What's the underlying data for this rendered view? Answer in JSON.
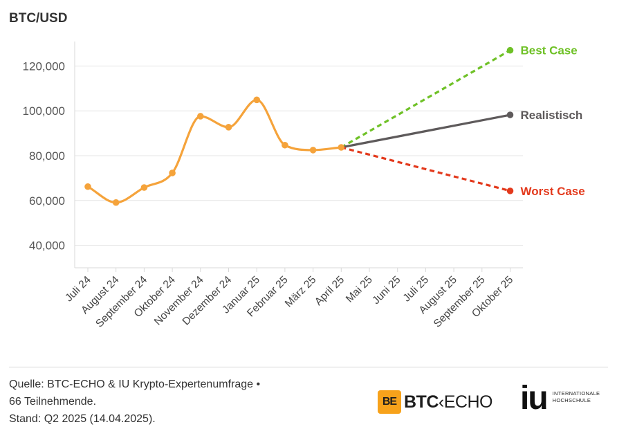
{
  "chart_data": {
    "type": "line",
    "title": "BTC/USD",
    "categories": [
      "Juli 24",
      "August 24",
      "September 24",
      "Oktober 24",
      "November 24",
      "Dezember 24",
      "Januar 25",
      "Februar 25",
      "März 25",
      "April 25",
      "Mai 25",
      "Juni 25",
      "Juli 25",
      "August 25",
      "September 25",
      "Oktober 25"
    ],
    "ylim": [
      30000,
      130000
    ],
    "yticks": [
      40000,
      60000,
      80000,
      100000,
      120000
    ],
    "ytick_labels": [
      "40,000",
      "60,000",
      "80,000",
      "100,000",
      "120,000"
    ],
    "grid": true,
    "series": [
      {
        "values": [
          66200,
          59100,
          65800,
          72300,
          97600,
          92700,
          104900,
          84700,
          82500,
          83700,
          null,
          null,
          null,
          null,
          null,
          null
        ],
        "color": "#f5a33b",
        "style": "smooth"
      },
      {
        "name": "Best Case",
        "values": [
          null,
          null,
          null,
          null,
          null,
          null,
          null,
          null,
          null,
          83700,
          null,
          null,
          null,
          null,
          null,
          127000
        ],
        "color": "#6fc127",
        "style": "dashed"
      },
      {
        "name": "Realistisch",
        "values": [
          null,
          null,
          null,
          null,
          null,
          null,
          null,
          null,
          null,
          83700,
          null,
          null,
          null,
          null,
          null,
          98200
        ],
        "color": "#5e5a5b",
        "style": "solid"
      },
      {
        "name": "Worst Case",
        "values": [
          null,
          null,
          null,
          null,
          null,
          null,
          null,
          null,
          null,
          83700,
          null,
          null,
          null,
          null,
          null,
          64300
        ],
        "color": "#e3391c",
        "style": "dashed"
      }
    ]
  },
  "footer": {
    "line1": "Quelle: BTC-ECHO & IU Krypto-Expertenumfrage •",
    "line2": "66 Teilnehmende.",
    "line3": "Stand: Q2 2025 (14.04.2025)."
  },
  "logos": {
    "btc_mark": "BE",
    "btc_word_bold": "BTC",
    "btc_word_rest": "ECHO",
    "iu_mark": "iu",
    "iu_line1": "INTERNATIONALE",
    "iu_line2": "HOCHSCHULE"
  }
}
